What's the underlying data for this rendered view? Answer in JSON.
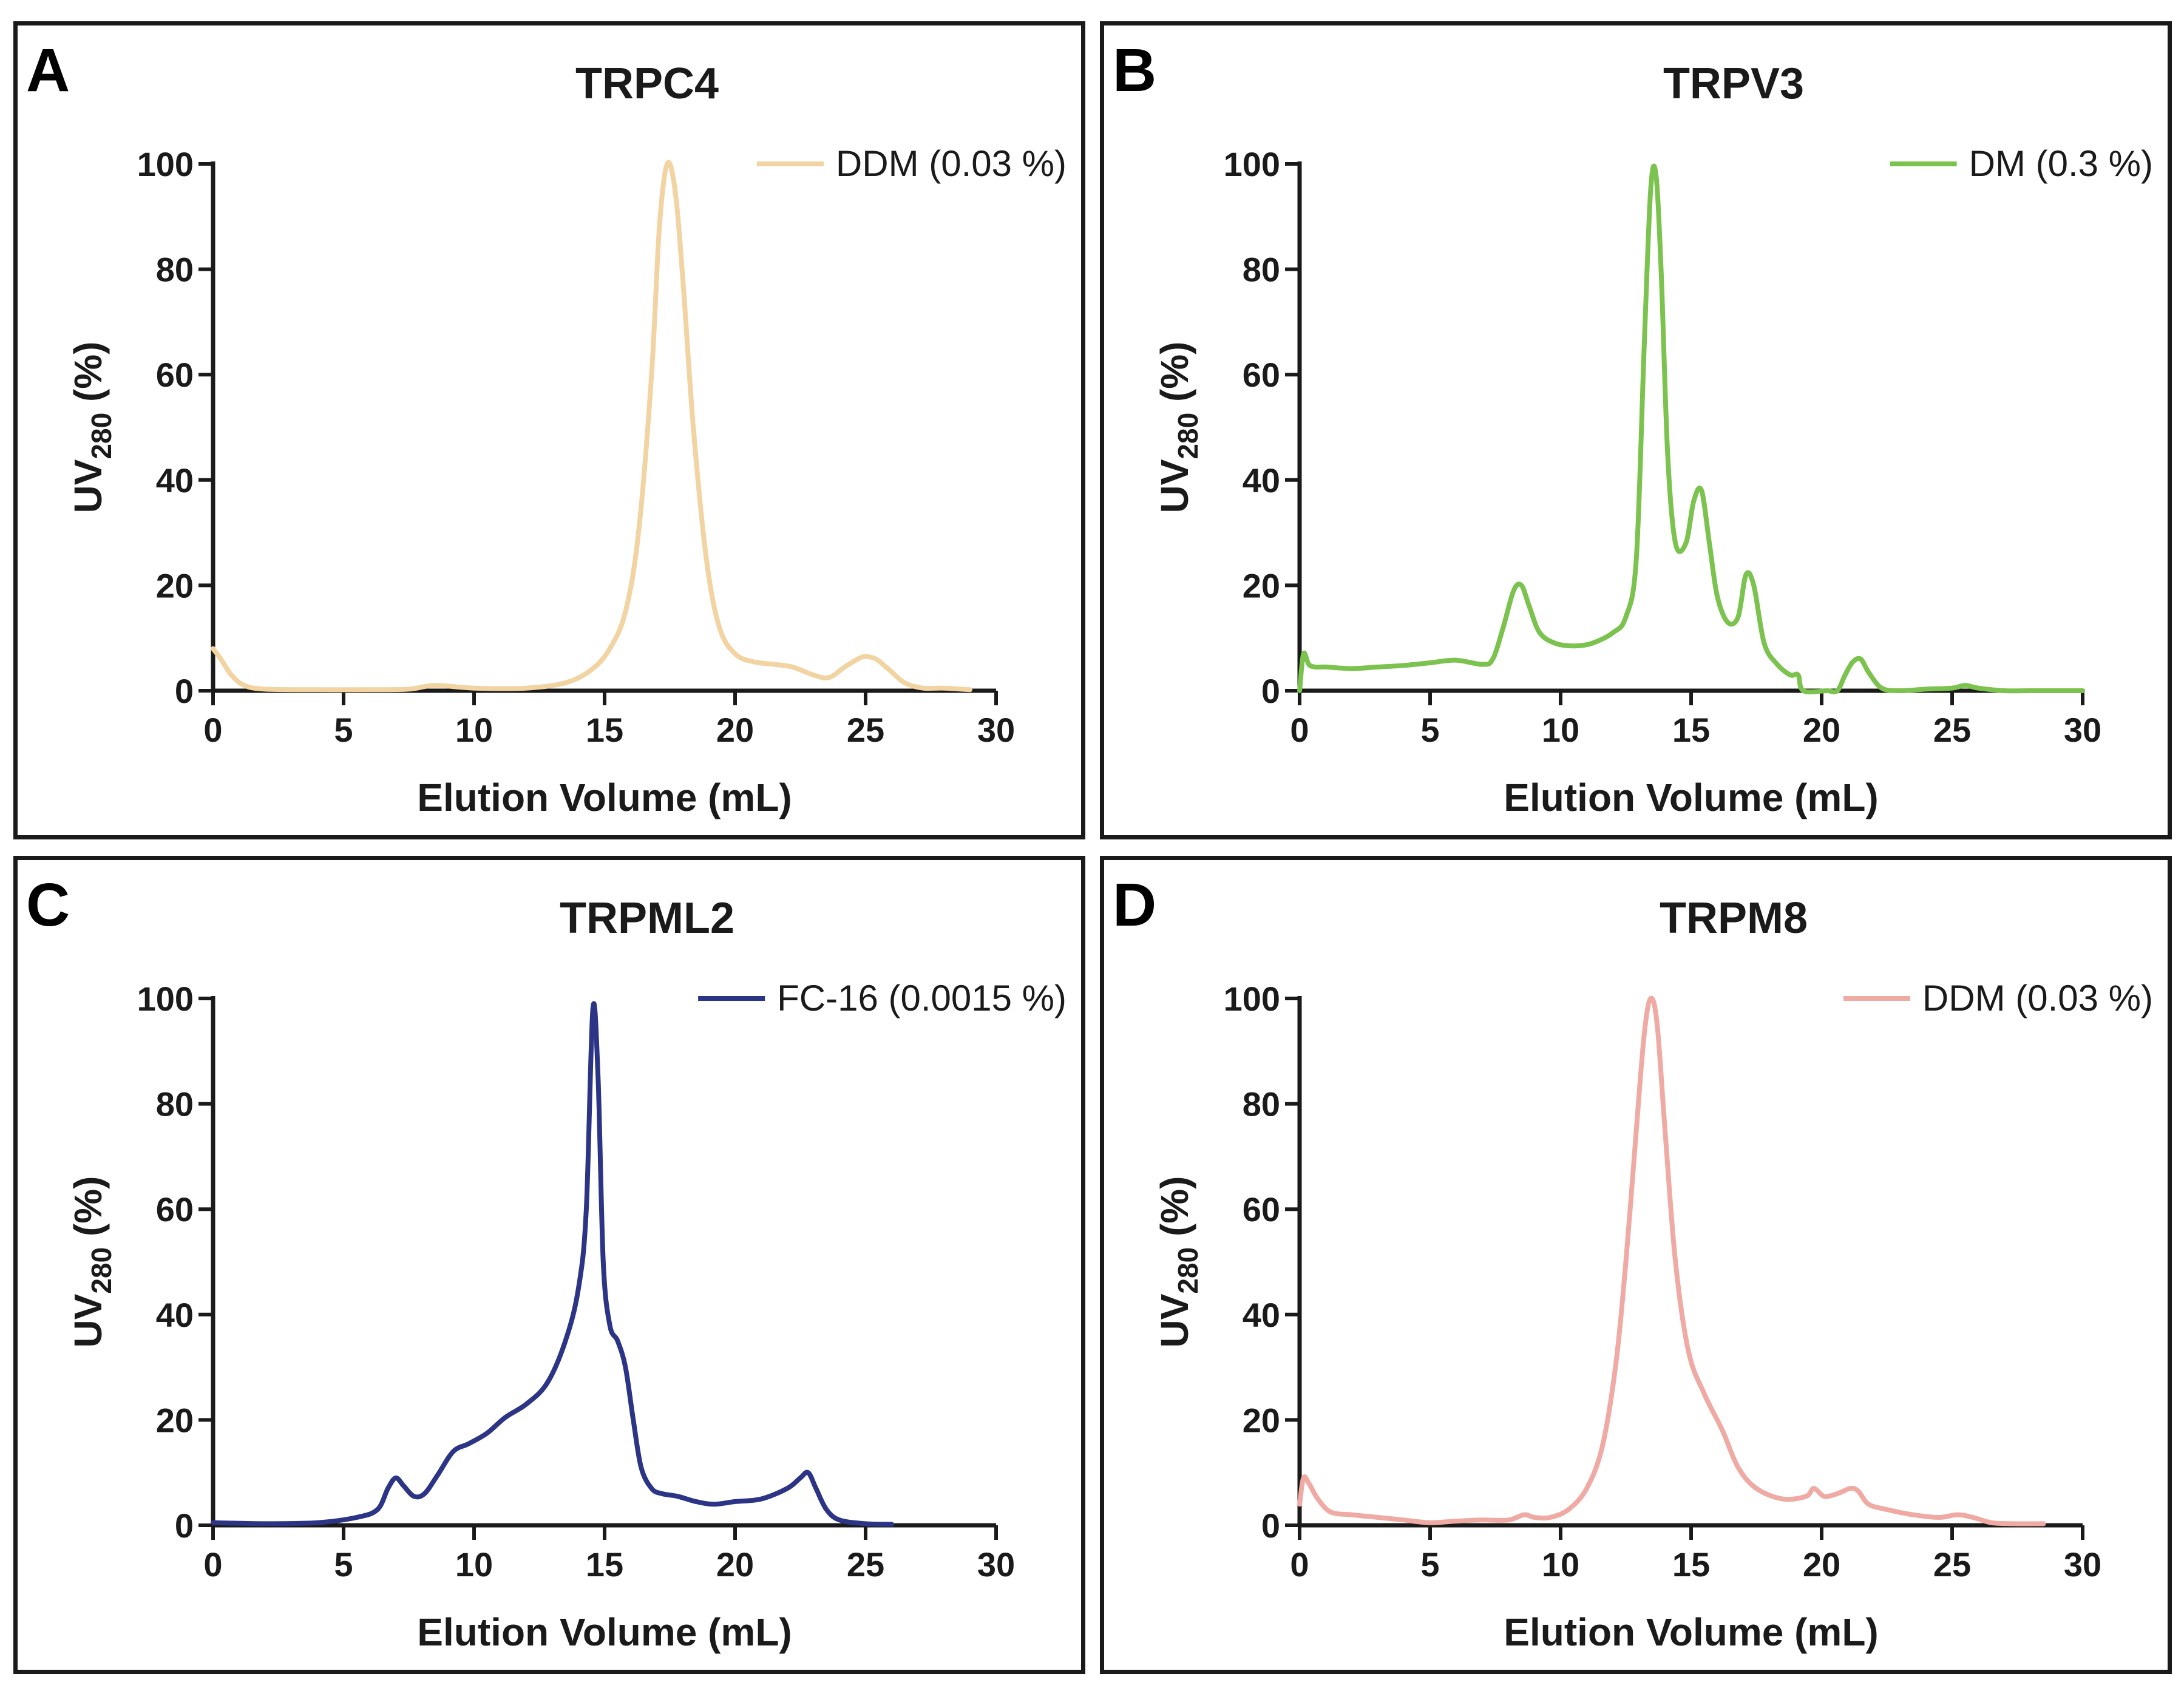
{
  "chart_data": [
    {
      "panel": "A",
      "type": "line",
      "title": "TRPC4",
      "xlabel": "Elution Volume (mL)",
      "ylabel": "UV",
      "ylabel_sub": "280",
      "ylabel_suffix": " (%)",
      "xlim": [
        0,
        30
      ],
      "ylim": [
        0,
        100
      ],
      "xticks": [
        0,
        5,
        10,
        15,
        20,
        25,
        30
      ],
      "yticks": [
        0,
        20,
        40,
        60,
        80,
        100
      ],
      "legend_position": "top-right",
      "series": [
        {
          "name": "DDM (0.03 %)",
          "color": "#f2d3a2",
          "x": [
            0,
            0.3,
            0.7,
            1.2,
            2,
            4,
            6,
            7.5,
            8.5,
            10,
            12,
            13.5,
            14.5,
            15.2,
            15.8,
            16.3,
            16.8,
            17.1,
            17.4,
            17.7,
            18.0,
            18.4,
            18.9,
            19.4,
            20,
            20.7,
            21.5,
            22.2,
            23,
            23.6,
            24.2,
            24.7,
            25.0,
            25.4,
            25.9,
            26.5,
            27.2,
            28,
            29
          ],
          "y": [
            8,
            6,
            3,
            1,
            0.3,
            0.2,
            0.2,
            0.3,
            1,
            0.5,
            0.5,
            1.5,
            4,
            8,
            15,
            30,
            60,
            88,
            100,
            95,
            78,
            50,
            25,
            12,
            7,
            5.5,
            5,
            4.5,
            3,
            2.5,
            4.5,
            6,
            6.5,
            6,
            4,
            1.5,
            0.5,
            0.5,
            0.2
          ]
        }
      ]
    },
    {
      "panel": "B",
      "type": "line",
      "title": "TRPV3",
      "xlabel": "Elution Volume (mL)",
      "ylabel": "UV",
      "ylabel_sub": "280",
      "ylabel_suffix": " (%)",
      "xlim": [
        0,
        30
      ],
      "ylim": [
        0,
        100
      ],
      "xticks": [
        0,
        5,
        10,
        15,
        20,
        25,
        30
      ],
      "yticks": [
        0,
        20,
        40,
        60,
        80,
        100
      ],
      "legend_position": "top-right",
      "series": [
        {
          "name": "DM (0.3 %)",
          "color": "#7cc24e",
          "x": [
            0,
            0.15,
            0.35,
            0.6,
            1,
            2,
            3,
            4,
            5,
            6,
            7,
            7.4,
            7.8,
            8.2,
            8.5,
            8.8,
            9.2,
            9.8,
            10.5,
            11.2,
            12,
            12.5,
            12.9,
            13.2,
            13.45,
            13.65,
            13.85,
            14.1,
            14.4,
            14.8,
            15.1,
            15.4,
            15.7,
            16.0,
            16.4,
            16.8,
            17.1,
            17.4,
            17.8,
            18.3,
            18.8,
            19.1,
            19.3,
            20.2,
            20.6,
            20.9,
            21.2,
            21.5,
            21.8,
            22.3,
            23,
            24,
            25,
            25.5,
            26,
            27,
            28,
            30
          ],
          "y": [
            0,
            7,
            5,
            4.5,
            4.5,
            4.2,
            4.5,
            4.8,
            5.3,
            5.8,
            5,
            6,
            12,
            19,
            20,
            16,
            11,
            9,
            8.5,
            9,
            11,
            14,
            25,
            65,
            95,
            98,
            80,
            45,
            28,
            28,
            36,
            38,
            28,
            18,
            13,
            14,
            22,
            20,
            9,
            5,
            3,
            3,
            0,
            0,
            0,
            3,
            5.5,
            6,
            3.5,
            0.5,
            0,
            0.3,
            0.5,
            1,
            0.5,
            0,
            0,
            0
          ]
        }
      ]
    },
    {
      "panel": "C",
      "type": "line",
      "title": "TRPML2",
      "xlabel": "Elution Volume (mL)",
      "ylabel": "UV",
      "ylabel_sub": "280",
      "ylabel_suffix": " (%)",
      "xlim": [
        0,
        30
      ],
      "ylim": [
        0,
        100
      ],
      "xticks": [
        0,
        5,
        10,
        15,
        20,
        25,
        30
      ],
      "yticks": [
        0,
        20,
        40,
        60,
        80,
        100
      ],
      "legend_position": "top-right",
      "series": [
        {
          "name": "FC-16 (0.0015 %)",
          "color": "#2c3486",
          "x": [
            0,
            2,
            4,
            5.5,
            6.3,
            6.7,
            7.0,
            7.3,
            7.7,
            8.1,
            8.6,
            9.2,
            9.8,
            10.5,
            11.2,
            12,
            12.8,
            13.5,
            14.0,
            14.3,
            14.55,
            14.75,
            14.95,
            15.2,
            15.5,
            15.8,
            16.1,
            16.4,
            16.8,
            17.2,
            17.8,
            18.5,
            19.2,
            20,
            21,
            22,
            22.5,
            22.8,
            23.1,
            23.5,
            24,
            25,
            26
          ],
          "y": [
            0.5,
            0.3,
            0.5,
            1.5,
            3,
            7,
            9,
            7.5,
            5.5,
            6,
            9.5,
            14,
            15.5,
            17.5,
            20.5,
            23,
            27,
            35,
            45,
            60,
            98,
            85,
            50,
            38,
            35,
            30,
            20,
            11,
            7,
            6,
            5.5,
            4.5,
            4,
            4.5,
            5,
            7,
            9,
            10,
            7,
            3,
            1,
            0.3,
            0.2
          ]
        }
      ]
    },
    {
      "panel": "D",
      "type": "line",
      "title": "TRPM8",
      "xlabel": "Elution Volume (mL)",
      "ylabel": "UV",
      "ylabel_sub": "280",
      "ylabel_suffix": " (%)",
      "xlim": [
        0,
        30
      ],
      "ylim": [
        0,
        100
      ],
      "xticks": [
        0,
        5,
        10,
        15,
        20,
        25,
        30
      ],
      "yticks": [
        0,
        20,
        40,
        60,
        80,
        100
      ],
      "legend_position": "top-right",
      "series": [
        {
          "name": "DDM (0.03 %)",
          "color": "#f0aaa4",
          "x": [
            0,
            0.15,
            0.35,
            0.7,
            1.2,
            2,
            3,
            4,
            5,
            6,
            7,
            8,
            8.6,
            9,
            9.6,
            10.3,
            11,
            11.6,
            12.1,
            12.5,
            12.9,
            13.2,
            13.45,
            13.7,
            14.0,
            14.4,
            14.9,
            15.5,
            16.2,
            16.8,
            17.5,
            18.5,
            19.4,
            19.7,
            20.1,
            20.6,
            21.1,
            21.4,
            21.8,
            22.5,
            23.5,
            24.5,
            25.2,
            25.8,
            26.5,
            27.3,
            28.5
          ],
          "y": [
            4,
            9,
            8,
            5,
            2.5,
            2,
            1.5,
            1,
            0.5,
            0.8,
            1,
            1,
            2,
            1.5,
            1.5,
            3,
            7,
            15,
            30,
            50,
            75,
            93,
            100,
            95,
            75,
            50,
            33,
            25,
            18,
            11,
            7,
            5,
            5.5,
            7,
            5.5,
            6,
            7,
            6.5,
            4,
            3,
            2,
            1.5,
            2,
            1.5,
            0.5,
            0.3,
            0.3
          ]
        }
      ]
    }
  ]
}
